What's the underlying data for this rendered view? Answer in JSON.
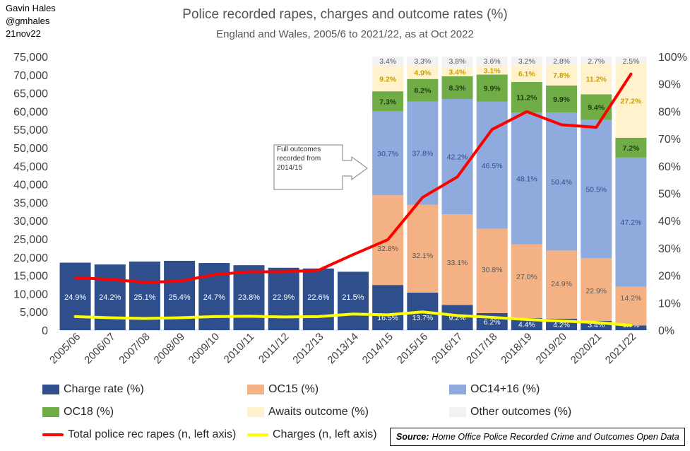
{
  "credit": {
    "author": "Gavin Hales",
    "handle": "@gmhales",
    "date": "21nov22"
  },
  "header": {
    "title": "Police recorded rapes, charges and outcome rates (%)",
    "subtitle": "England and Wales, 2005/6 to 2021/22, as at Oct 2022"
  },
  "callout": {
    "text": "Full outcomes recorded from 2014/15"
  },
  "source": {
    "label": "Source:",
    "text": "Home Office Police Recorded Crime and Outcomes Open Data"
  },
  "legend": {
    "charge_rate": "Charge rate (%)",
    "oc15": "OC15 (%)",
    "oc14_16": "OC14+16 (%)",
    "oc18": "OC18 (%)",
    "awaits": "Awaits outcome (%)",
    "other": "Other outcomes (%)",
    "total": "Total police rec rapes (n, left axis)",
    "charges": "Charges (n, left axis)"
  },
  "chart_data": {
    "type": "bar",
    "categories": [
      "2005/06",
      "2006/07",
      "2007/08",
      "2008/09",
      "2009/10",
      "2010/11",
      "2011/12",
      "2012/13",
      "2013/14",
      "2014/15",
      "2015/16",
      "2016/17",
      "2017/18",
      "2018/19",
      "2019/20",
      "2020/21",
      "2021/22"
    ],
    "left_axis": {
      "ylim": [
        0,
        75000
      ],
      "ticks": [
        "0",
        "5,000",
        "10,000",
        "15,000",
        "20,000",
        "25,000",
        "30,000",
        "35,000",
        "40,000",
        "45,000",
        "50,000",
        "55,000",
        "60,000",
        "65,000",
        "70,000",
        "75,000"
      ]
    },
    "right_axis": {
      "ylim": [
        0,
        100
      ],
      "ticks": [
        "0%",
        "10%",
        "20%",
        "30%",
        "40%",
        "50%",
        "60%",
        "70%",
        "80%",
        "90%",
        "100%"
      ]
    },
    "colors": {
      "charge_rate": "#2e4f8c",
      "oc15": "#f4b183",
      "oc14_16": "#8faadc",
      "oc18": "#70ad47",
      "awaits": "#fff2cc",
      "other": "#f2f2f2",
      "total": "#ff0000",
      "charges": "#ffff00"
    },
    "early_bars": {
      "name": "Charge rate (%)",
      "values": [
        18500,
        18000,
        18800,
        19000,
        18400,
        17800,
        17100,
        16900,
        16000
      ],
      "labels": [
        "24.9%",
        "24.2%",
        "25.1%",
        "25.4%",
        "24.7%",
        "23.8%",
        "22.9%",
        "22.6%",
        "21.5%"
      ]
    },
    "stacked_series": [
      {
        "key": "charge_rate",
        "name": "Charge rate (%)",
        "values": [
          16.5,
          13.7,
          9.2,
          6.2,
          4.4,
          4.2,
          3.4,
          1.7
        ],
        "labels": [
          "16.5%",
          "13.7%",
          "9.2%",
          "6.2%",
          "4.4%",
          "4.2%",
          "3.4%",
          "1.7%"
        ]
      },
      {
        "key": "oc15",
        "name": "OC15 (%)",
        "values": [
          32.8,
          32.1,
          33.1,
          30.8,
          27.0,
          24.9,
          22.9,
          14.2
        ],
        "labels": [
          "32.8%",
          "32.1%",
          "33.1%",
          "30.8%",
          "27.0%",
          "24.9%",
          "22.9%",
          "14.2%"
        ]
      },
      {
        "key": "oc14_16",
        "name": "OC14+16 (%)",
        "values": [
          30.7,
          37.8,
          42.2,
          46.5,
          48.1,
          50.4,
          50.5,
          47.2
        ],
        "labels": [
          "30.7%",
          "37.8%",
          "42.2%",
          "46.5%",
          "48.1%",
          "50.4%",
          "50.5%",
          "47.2%"
        ]
      },
      {
        "key": "oc18",
        "name": "OC18 (%)",
        "values": [
          7.3,
          8.2,
          8.3,
          9.9,
          11.2,
          9.9,
          9.4,
          7.2
        ],
        "labels": [
          "7.3%",
          "8.2%",
          "8.3%",
          "9.9%",
          "11.2%",
          "9.9%",
          "9.4%",
          "7.2%"
        ]
      },
      {
        "key": "awaits",
        "name": "Awaits outcome (%)",
        "values": [
          9.2,
          4.9,
          3.4,
          3.1,
          6.1,
          7.8,
          11.2,
          27.2
        ],
        "labels": [
          "9.2%",
          "4.9%",
          "3.4%",
          "3.1%",
          "6.1%",
          "7.8%",
          "11.2%",
          "27.2%"
        ]
      },
      {
        "key": "other",
        "name": "Other outcomes (%)",
        "values": [
          3.4,
          3.3,
          3.8,
          3.6,
          3.2,
          2.8,
          2.7,
          2.5
        ],
        "labels": [
          "3.4%",
          "3.3%",
          "3.8%",
          "3.6%",
          "3.2%",
          "2.8%",
          "2.7%",
          "2.5%"
        ]
      }
    ],
    "lines": [
      {
        "key": "total",
        "name": "Total police rec rapes (n, left axis)",
        "values": [
          14400,
          13900,
          13100,
          13400,
          15200,
          16000,
          16000,
          16400,
          20700,
          24800,
          36400,
          42000,
          55000,
          59900,
          56300,
          55600,
          70200
        ]
      },
      {
        "key": "charges",
        "name": "Charges (n, left axis)",
        "values": [
          3700,
          3400,
          3200,
          3400,
          3700,
          3800,
          3600,
          3700,
          4400,
          4200,
          5000,
          4000,
          3500,
          2900,
          2500,
          2100,
          1300
        ]
      }
    ]
  }
}
